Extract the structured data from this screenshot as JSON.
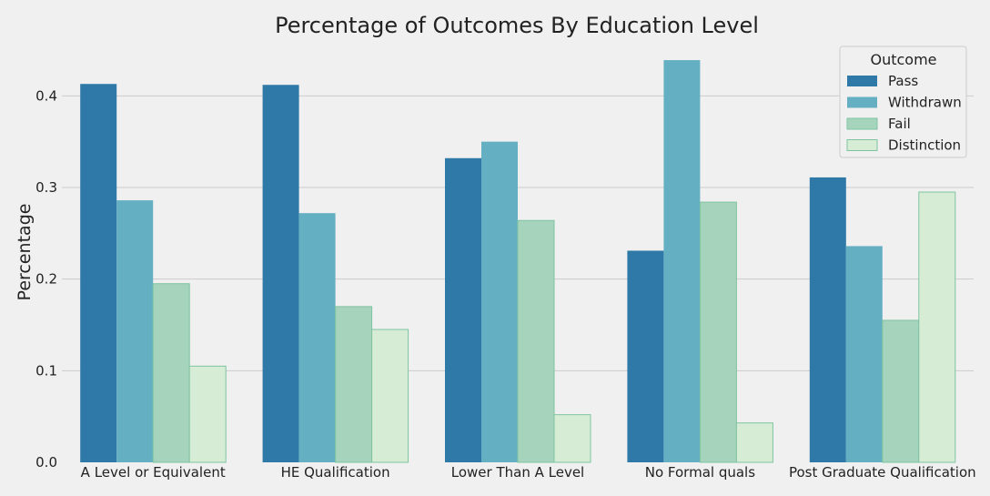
{
  "chart_data": {
    "type": "bar",
    "title": "Percentage of Outcomes By Education Level",
    "xlabel": "",
    "ylabel": "Percentage",
    "categories": [
      "A Level or Equivalent",
      "HE Qualification",
      "Lower Than A Level",
      "No Formal quals",
      "Post Graduate Qualification"
    ],
    "series": [
      {
        "name": "Pass",
        "color": "#2e79a7",
        "values": [
          0.413,
          0.412,
          0.332,
          0.231,
          0.311
        ]
      },
      {
        "name": "Withdrawn",
        "color": "#65afc2",
        "values": [
          0.286,
          0.272,
          0.35,
          0.439,
          0.236
        ]
      },
      {
        "name": "Fail",
        "color": "#a6d3bb",
        "values": [
          0.195,
          0.17,
          0.264,
          0.284,
          0.155
        ]
      },
      {
        "name": "Distinction",
        "color": "#d7ecd4",
        "values": [
          0.105,
          0.145,
          0.052,
          0.043,
          0.295
        ]
      }
    ],
    "ylim": [
      0,
      0.45
    ],
    "yticks": [
      0.0,
      0.1,
      0.2,
      0.3,
      0.4
    ],
    "ytick_labels": [
      "0.0",
      "0.1",
      "0.2",
      "0.3",
      "0.4"
    ],
    "grid": "horizontal",
    "legend": {
      "title": "Outcome",
      "position": "top-right"
    }
  }
}
